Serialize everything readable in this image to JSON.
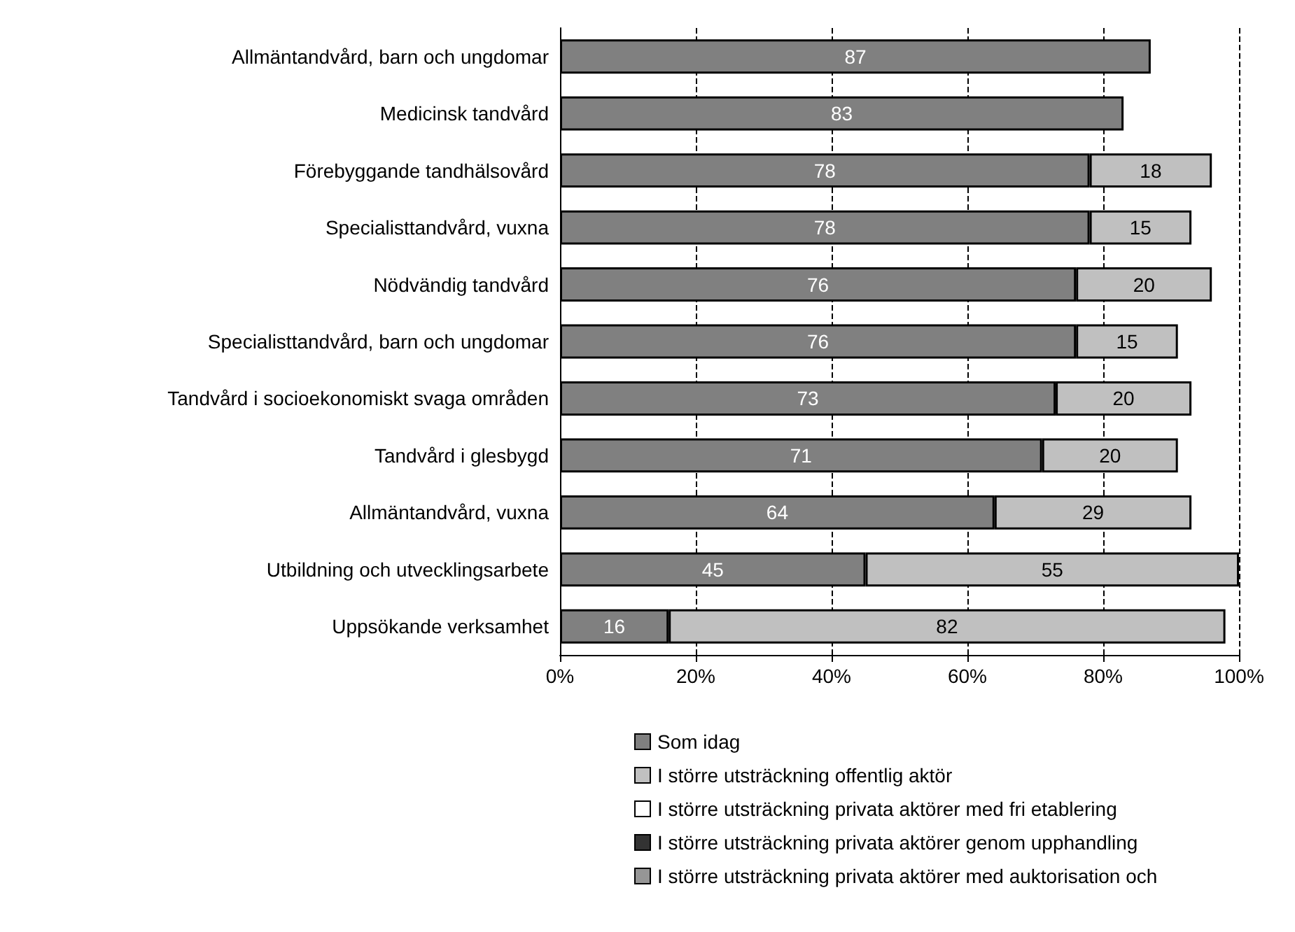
{
  "chart_data": {
    "type": "bar",
    "orientation": "horizontal",
    "stacked": true,
    "data_labels": true,
    "grid": "x",
    "legend": "bottom",
    "categories": [
      "Allmäntandvård, barn och ungdomar",
      "Medicinsk tandvård",
      "Förebyggande tandhälsovård",
      "Specialisttandvård, vuxna",
      "Nödvändig tandvård",
      "Specialisttandvård, barn och ungdomar",
      "Tandvård i socioekonomiskt svaga områden",
      "Tandvård i glesbygd",
      "Allmäntandvård, vuxna",
      "Utbildning och utvecklingsarbete",
      "Uppsökande verksamhet"
    ],
    "xlim": [
      0,
      100
    ],
    "xticks": [
      {
        "value": 0,
        "label": "0%"
      },
      {
        "value": 20,
        "label": "20%"
      },
      {
        "value": 40,
        "label": "40%"
      },
      {
        "value": 60,
        "label": "60%"
      },
      {
        "value": 80,
        "label": "80%"
      },
      {
        "value": 100,
        "label": "100%"
      }
    ],
    "series": [
      {
        "name": "Som idag",
        "color": "#808080",
        "values": [
          87,
          83,
          78,
          78,
          76,
          76,
          73,
          71,
          64,
          45,
          16
        ]
      },
      {
        "name": "I större utsträckning offentlig aktör",
        "color": "#c0c0c0",
        "values": [
          null,
          null,
          18,
          15,
          20,
          15,
          20,
          20,
          29,
          55,
          82
        ]
      },
      {
        "name": "I större utsträckning privata aktörer med fri etablering",
        "color": "#ffffff",
        "values": [
          null,
          null,
          null,
          null,
          null,
          null,
          null,
          null,
          null,
          null,
          null
        ]
      },
      {
        "name": "I större utsträckning privata aktörer genom upphandling",
        "color": "#333333",
        "values": [
          null,
          null,
          null,
          null,
          null,
          null,
          null,
          null,
          null,
          null,
          null
        ]
      },
      {
        "name": "I större utsträckning privata aktörer med auktorisation och",
        "color": "#969696",
        "values": [
          null,
          null,
          null,
          null,
          null,
          null,
          null,
          null,
          null,
          null,
          null
        ]
      }
    ]
  }
}
